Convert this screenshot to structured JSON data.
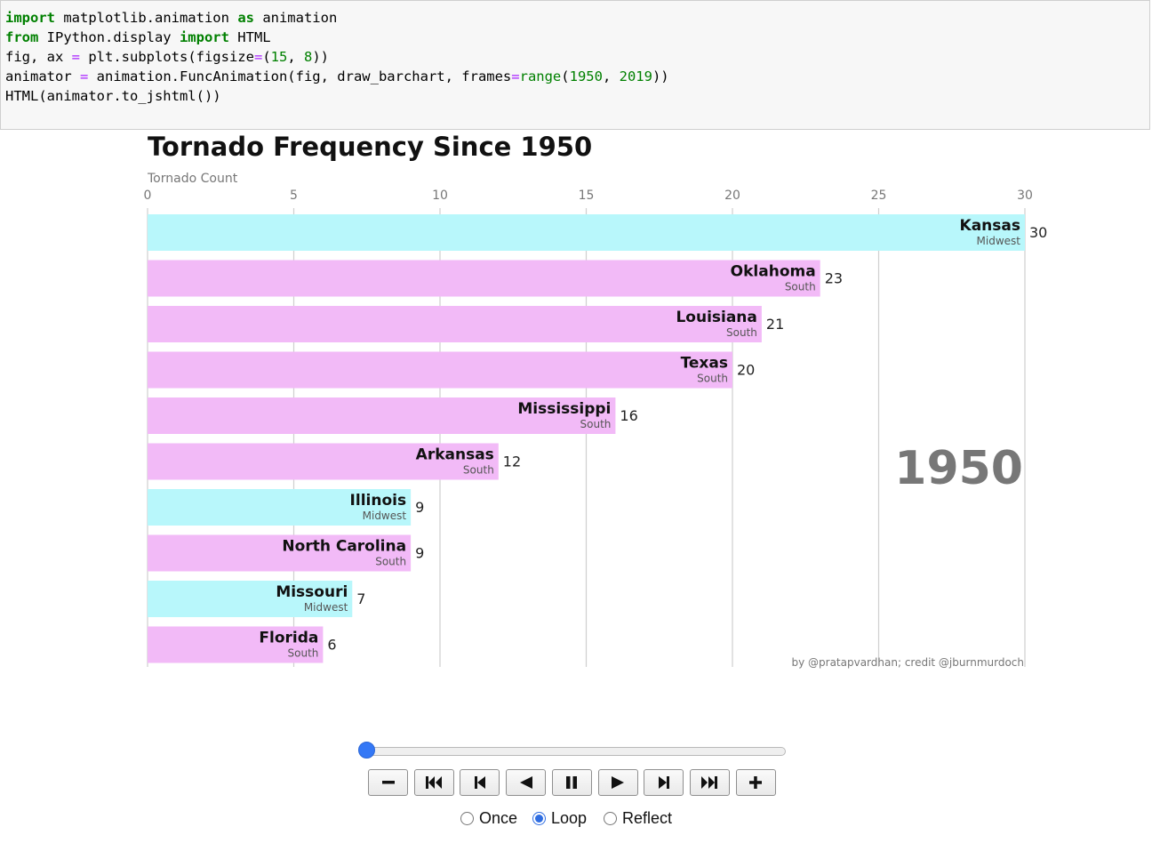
{
  "code": {
    "lines": [
      [
        {
          "t": "import",
          "c": "kw"
        },
        {
          "t": " matplotlib.animation ",
          "c": ""
        },
        {
          "t": "as",
          "c": "kw"
        },
        {
          "t": " animation",
          "c": ""
        }
      ],
      [
        {
          "t": "from",
          "c": "kw"
        },
        {
          "t": " IPython.display ",
          "c": ""
        },
        {
          "t": "import",
          "c": "kw"
        },
        {
          "t": " HTML",
          "c": ""
        }
      ],
      [
        {
          "t": "fig, ax ",
          "c": ""
        },
        {
          "t": "=",
          "c": "op"
        },
        {
          "t": " plt.subplots(figsize",
          "c": ""
        },
        {
          "t": "=",
          "c": "op"
        },
        {
          "t": "(",
          "c": ""
        },
        {
          "t": "15",
          "c": "num"
        },
        {
          "t": ", ",
          "c": ""
        },
        {
          "t": "8",
          "c": "num"
        },
        {
          "t": "))",
          "c": ""
        }
      ],
      [
        {
          "t": "animator ",
          "c": ""
        },
        {
          "t": "=",
          "c": "op"
        },
        {
          "t": " animation.FuncAnimation(fig, draw_barchart, frames",
          "c": ""
        },
        {
          "t": "=",
          "c": "op"
        },
        {
          "t": "range",
          "c": "bi"
        },
        {
          "t": "(",
          "c": ""
        },
        {
          "t": "1950",
          "c": "num"
        },
        {
          "t": ", ",
          "c": ""
        },
        {
          "t": "2019",
          "c": "num"
        },
        {
          "t": "))",
          "c": ""
        }
      ],
      [
        {
          "t": "HTML(animator.to_jshtml())",
          "c": ""
        }
      ]
    ]
  },
  "chart_data": {
    "type": "bar",
    "orientation": "horizontal",
    "title": "Tornado Frequency Since 1950",
    "xlabel": "Tornado Count",
    "xlim": [
      0,
      30
    ],
    "xticks": [
      0,
      5,
      10,
      15,
      20,
      25,
      30
    ],
    "grid": true,
    "year": "1950",
    "credit": "by @pratapvardhan; credit @jburnmurdoch",
    "region_colors": {
      "Midwest": "#b8f7fb",
      "South": "#f2baf7"
    },
    "bars": [
      {
        "state": "Kansas",
        "region": "Midwest",
        "value": 30
      },
      {
        "state": "Oklahoma",
        "region": "South",
        "value": 23
      },
      {
        "state": "Louisiana",
        "region": "South",
        "value": 21
      },
      {
        "state": "Texas",
        "region": "South",
        "value": 20
      },
      {
        "state": "Mississippi",
        "region": "South",
        "value": 16
      },
      {
        "state": "Arkansas",
        "region": "South",
        "value": 12
      },
      {
        "state": "Illinois",
        "region": "Midwest",
        "value": 9
      },
      {
        "state": "North Carolina",
        "region": "South",
        "value": 9
      },
      {
        "state": "Missouri",
        "region": "Midwest",
        "value": 7
      },
      {
        "state": "Florida",
        "region": "South",
        "value": 6
      }
    ]
  },
  "player": {
    "frame_fraction": 0,
    "buttons": [
      "minus-icon",
      "first-frame-icon",
      "previous-frame-icon",
      "play-reverse-icon",
      "pause-icon",
      "play-icon",
      "next-frame-icon",
      "last-frame-icon",
      "plus-icon"
    ],
    "modes": [
      {
        "label": "Once",
        "checked": false
      },
      {
        "label": "Loop",
        "checked": true
      },
      {
        "label": "Reflect",
        "checked": false
      }
    ]
  }
}
